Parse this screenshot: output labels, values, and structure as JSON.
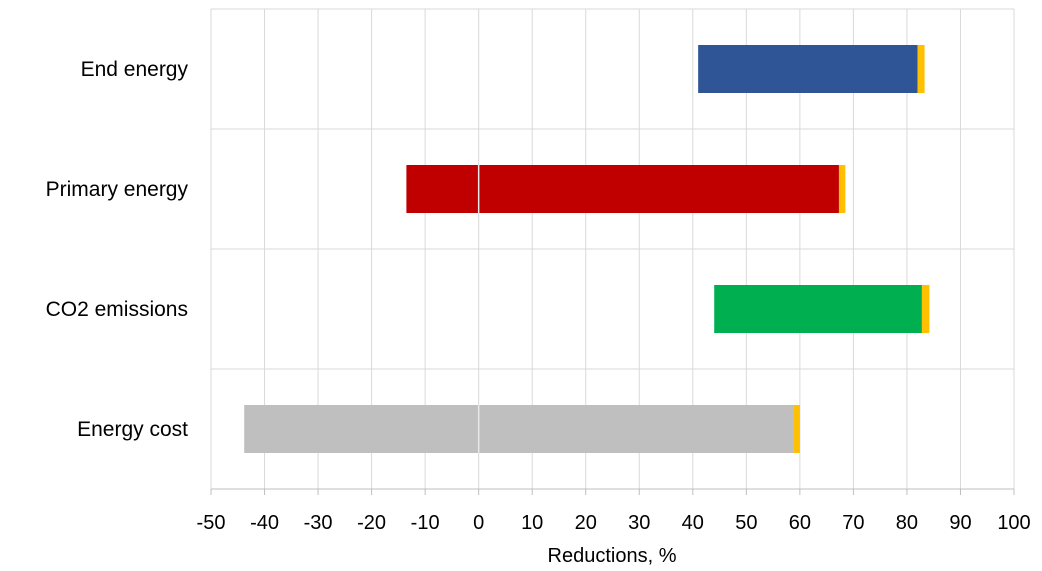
{
  "chart_data": {
    "type": "bar",
    "orientation": "horizontal",
    "stacked": "floating range",
    "categories": [
      "End energy",
      "Primary energy",
      "CO2 emissions",
      "Energy cost"
    ],
    "series": [
      {
        "ranges": [
          [
            41,
            82
          ],
          [
            -13.5,
            67.3
          ],
          [
            44,
            82.8
          ],
          [
            -43.8,
            58.8
          ]
        ]
      },
      {
        "ranges": [
          [
            82,
            83.3
          ],
          [
            67.3,
            68.5
          ],
          [
            82.8,
            84.2
          ],
          [
            58.8,
            60
          ]
        ]
      }
    ],
    "bar_colors": [
      "#2f5597",
      "#c00000",
      "#00b050",
      "#bfbfbf"
    ],
    "cap_color": "#ffc000",
    "xlabel": "Reductions, %",
    "xlim": [
      -50,
      100
    ],
    "xticks": [
      "-50",
      "-40",
      "-30",
      "-20",
      "-10",
      "0",
      "10",
      "20",
      "30",
      "40",
      "50",
      "60",
      "70",
      "80",
      "90",
      "100"
    ],
    "grid": true
  }
}
